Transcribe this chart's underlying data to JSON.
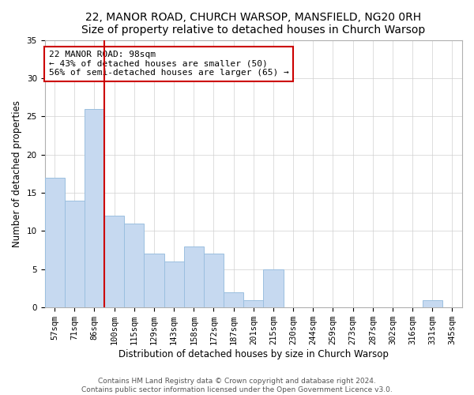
{
  "title1": "22, MANOR ROAD, CHURCH WARSOP, MANSFIELD, NG20 0RH",
  "title2": "Size of property relative to detached houses in Church Warsop",
  "xlabel": "Distribution of detached houses by size in Church Warsop",
  "ylabel": "Number of detached properties",
  "bar_labels": [
    "57sqm",
    "71sqm",
    "86sqm",
    "100sqm",
    "115sqm",
    "129sqm",
    "143sqm",
    "158sqm",
    "172sqm",
    "187sqm",
    "201sqm",
    "215sqm",
    "230sqm",
    "244sqm",
    "259sqm",
    "273sqm",
    "287sqm",
    "302sqm",
    "316sqm",
    "331sqm",
    "345sqm"
  ],
  "bar_values": [
    17,
    14,
    26,
    12,
    11,
    7,
    6,
    8,
    7,
    2,
    1,
    5,
    0,
    0,
    0,
    0,
    0,
    0,
    0,
    1,
    0
  ],
  "bar_color": "#c6d9f0",
  "bar_edge_color": "#9bbfdf",
  "vline_color": "#cc0000",
  "vline_x_idx": 2.5,
  "annotation_line1": "22 MANOR ROAD: 98sqm",
  "annotation_line2": "← 43% of detached houses are smaller (50)",
  "annotation_line3": "56% of semi-detached houses are larger (65) →",
  "ylim": [
    0,
    35
  ],
  "yticks": [
    0,
    5,
    10,
    15,
    20,
    25,
    30,
    35
  ],
  "footer1": "Contains HM Land Registry data © Crown copyright and database right 2024.",
  "footer2": "Contains public sector information licensed under the Open Government Licence v3.0.",
  "title_fontsize": 10,
  "axis_label_fontsize": 8.5,
  "tick_fontsize": 7.5,
  "annotation_fontsize": 8,
  "footer_fontsize": 6.5,
  "bar_color_highlight": "#c6d9f0"
}
